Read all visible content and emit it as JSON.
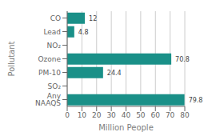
{
  "chart_data": {
    "type": "bar",
    "orientation": "horizontal",
    "categories": [
      "CO",
      "Lead",
      "NO₂",
      "Ozone",
      "PM-10",
      "SO₂",
      "Any NAAQS"
    ],
    "values": [
      12,
      4.8,
      0,
      70.8,
      24.4,
      0,
      79.8
    ],
    "color": "#1a9088",
    "xlabel": "Million People",
    "ylabel": "Pollutant",
    "xlim": [
      0,
      80
    ],
    "xticks": [
      0,
      10,
      20,
      30,
      40,
      50,
      60,
      70,
      80
    ],
    "grid": true,
    "data_labels": true
  }
}
